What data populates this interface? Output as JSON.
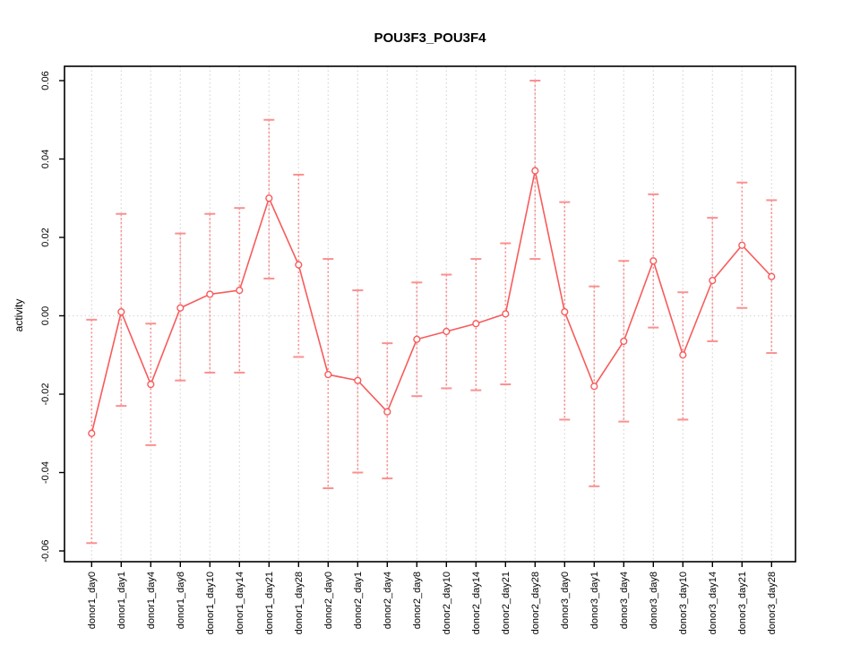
{
  "window": {
    "kind": "r-statistical-plot"
  },
  "colors": {
    "series_line": "#f85b5b",
    "error_bar": "#fb9090",
    "grid": "#d9d9d9",
    "axis": "#000000",
    "background": "#ffffff"
  },
  "chart_data": {
    "type": "line",
    "title": "POU3F3_POU3F4",
    "xlabel": "",
    "ylabel": "activity",
    "ylim": [
      -0.065,
      0.065
    ],
    "yticks": [
      0.06,
      0.04,
      0.02,
      0,
      -0.02,
      -0.04,
      -0.06
    ],
    "ytick_labels": [
      "0.06",
      "0.04",
      "0.02",
      "0.00",
      "-0.02",
      "-0.04",
      "-0.06"
    ],
    "grid": "dotted vertical gridline at every category; dotted horizontal reference line at y=0",
    "legend": "none",
    "marker": "open-circle",
    "error_bars": true,
    "categories": [
      "donor1_day0",
      "donor1_day1",
      "donor1_day4",
      "donor1_day8",
      "donor1_day10",
      "donor1_day14",
      "donor1_day21",
      "donor1_day28",
      "donor2_day0",
      "donor2_day1",
      "donor2_day4",
      "donor2_day8",
      "donor2_day10",
      "donor2_day14",
      "donor2_day21",
      "donor2_day28",
      "donor3_day0",
      "donor3_day1",
      "donor3_day4",
      "donor3_day8",
      "donor3_day10",
      "donor3_day14",
      "donor3_day21",
      "donor3_day28"
    ],
    "series": [
      {
        "name": "activity",
        "values": [
          -0.03,
          0.001,
          -0.0175,
          0.002,
          0.0055,
          0.0065,
          0.03,
          0.013,
          -0.015,
          -0.0165,
          -0.0245,
          -0.006,
          -0.004,
          -0.002,
          0.0005,
          0.037,
          0.001,
          -0.018,
          -0.0065,
          0.014,
          -0.01,
          0.009,
          0.018,
          0.01
        ],
        "upper": [
          -0.001,
          0.026,
          -0.002,
          0.021,
          0.026,
          0.0275,
          0.05,
          0.036,
          0.0145,
          0.0065,
          -0.007,
          0.0085,
          0.0105,
          0.0145,
          0.0185,
          0.06,
          0.029,
          0.0075,
          0.014,
          0.031,
          0.006,
          0.025,
          0.034,
          0.0295
        ],
        "lower": [
          -0.058,
          -0.023,
          -0.033,
          -0.0165,
          -0.0145,
          -0.0145,
          0.0095,
          -0.0105,
          -0.044,
          -0.04,
          -0.0415,
          -0.0205,
          -0.0185,
          -0.019,
          -0.0175,
          0.0145,
          -0.0265,
          -0.0435,
          -0.027,
          -0.003,
          -0.0265,
          -0.0065,
          0.002,
          -0.0095
        ]
      }
    ]
  }
}
